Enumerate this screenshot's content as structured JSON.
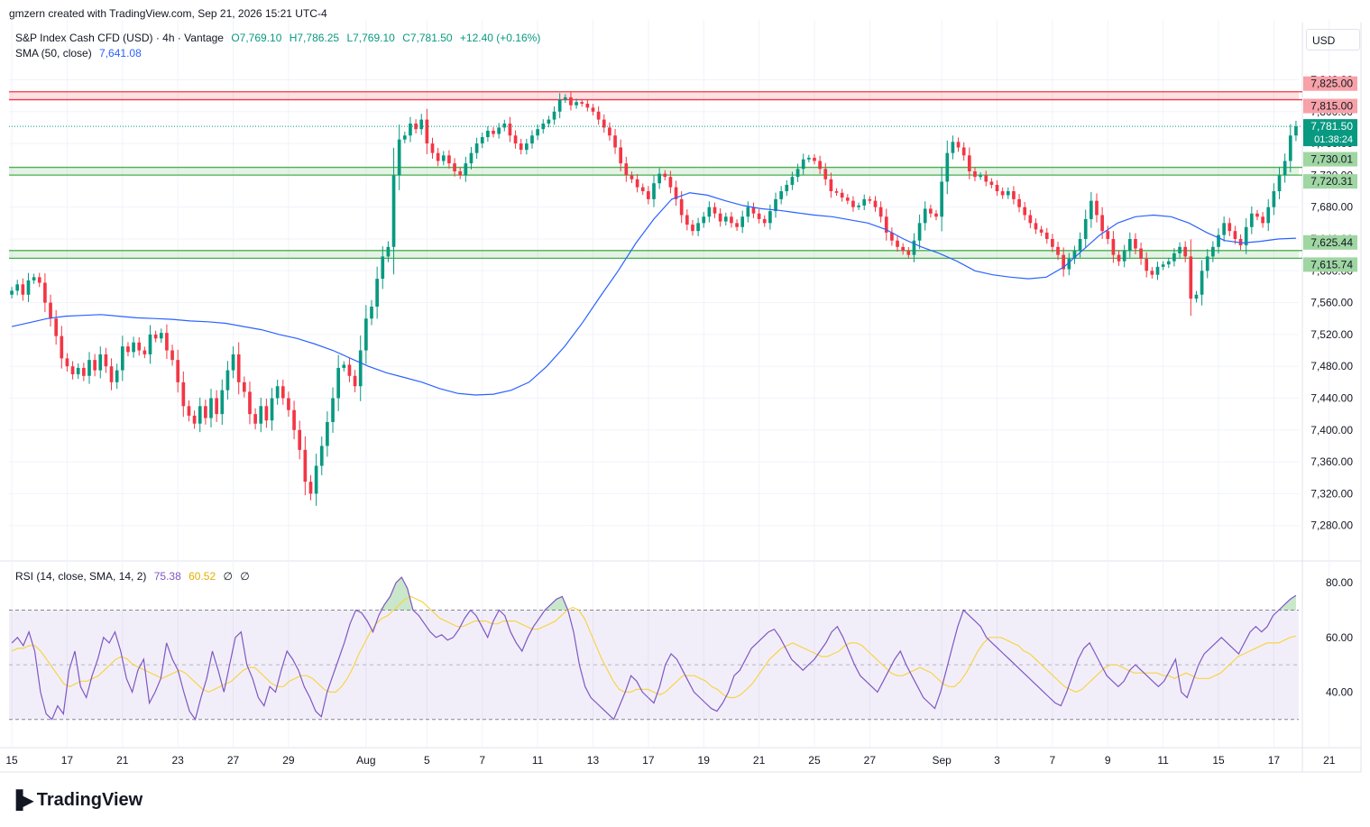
{
  "header": {
    "credit": "gmzern created with TradingView.com, Sep 21, 2026 15:21 UTC-4"
  },
  "legend": {
    "symbol": "S&P Index Cash CFD (USD) · 4h · Vantage",
    "open": "O7,769.10",
    "high": "H7,786.25",
    "low": "L7,769.10",
    "close": "C7,781.50",
    "change": "+12.40 (+0.16%)",
    "sma_label": "SMA (50, close)",
    "sma_value": "7,641.08",
    "rsi_label": "RSI (14, close, SMA, 14, 2)",
    "rsi_value": "75.38",
    "rsi_ma_value": "60.52",
    "rsi_extra1": "∅",
    "rsi_extra2": "∅"
  },
  "currency": "USD",
  "logo_text": "TradingView",
  "colors": {
    "up": "#089981",
    "down": "#f23645",
    "sma": "#2962ff",
    "rsi": "#7e57c2",
    "rsi_ma": "#f7d44a",
    "resistance_zone": "#f23645",
    "support_zone": "#4caf50"
  },
  "chart_data": {
    "type": "candlestick",
    "timeframe": "4h",
    "y_axis": {
      "ticks": [
        "7,840.00",
        "7,800.00",
        "7,760.00",
        "7,720.00",
        "7,680.00",
        "7,640.00",
        "7,600.00",
        "7,560.00",
        "7,520.00",
        "7,480.00",
        "7,440.00",
        "7,400.00",
        "7,360.00",
        "7,320.00",
        "7,280.00"
      ],
      "tick_values": [
        7840,
        7800,
        7760,
        7720,
        7680,
        7640,
        7600,
        7560,
        7520,
        7480,
        7440,
        7400,
        7360,
        7320,
        7280
      ],
      "range": [
        7240,
        7870
      ]
    },
    "x_axis": {
      "labels": [
        "15",
        "17",
        "21",
        "23",
        "27",
        "29",
        "Aug",
        "5",
        "7",
        "11",
        "13",
        "17",
        "19",
        "21",
        "25",
        "27",
        "Sep",
        "3",
        "7",
        "9",
        "11",
        "15",
        "17",
        "21"
      ],
      "label_index": [
        0,
        10,
        20,
        30,
        40,
        50,
        64,
        75,
        85,
        95,
        105,
        115,
        125,
        135,
        145,
        155,
        168,
        178,
        188,
        198,
        208,
        218,
        228,
        238
      ]
    },
    "zones": [
      {
        "kind": "resistance",
        "low": 7815.0,
        "high": 7825.0,
        "labels": [
          "7,825.00",
          "7,815.00"
        ]
      },
      {
        "kind": "support",
        "low": 7720.31,
        "high": 7730.01,
        "labels": [
          "7,730.01",
          "7,720.31"
        ]
      },
      {
        "kind": "support",
        "low": 7615.74,
        "high": 7625.44,
        "labels": [
          "7,625.44",
          "7,615.74"
        ]
      }
    ],
    "last_price": {
      "value": 7781.5,
      "label": "7,781.50",
      "countdown": "01:38:24"
    },
    "closes": [
      7575,
      7583,
      7570,
      7588,
      7592,
      7585,
      7560,
      7540,
      7518,
      7490,
      7480,
      7470,
      7478,
      7468,
      7488,
      7475,
      7495,
      7480,
      7460,
      7475,
      7505,
      7498,
      7510,
      7500,
      7495,
      7520,
      7515,
      7522,
      7500,
      7488,
      7460,
      7430,
      7418,
      7408,
      7430,
      7415,
      7440,
      7420,
      7450,
      7475,
      7495,
      7460,
      7448,
      7420,
      7408,
      7430,
      7412,
      7440,
      7455,
      7440,
      7425,
      7400,
      7375,
      7335,
      7320,
      7355,
      7380,
      7410,
      7440,
      7478,
      7482,
      7468,
      7455,
      7500,
      7540,
      7555,
      7590,
      7618,
      7630,
      7720,
      7765,
      7770,
      7785,
      7778,
      7790,
      7760,
      7748,
      7738,
      7745,
      7735,
      7725,
      7720,
      7735,
      7748,
      7760,
      7768,
      7776,
      7772,
      7780,
      7785,
      7770,
      7760,
      7752,
      7760,
      7770,
      7778,
      7785,
      7790,
      7800,
      7815,
      7818,
      7808,
      7812,
      7810,
      7805,
      7800,
      7790,
      7780,
      7770,
      7755,
      7735,
      7720,
      7715,
      7705,
      7700,
      7690,
      7710,
      7722,
      7718,
      7705,
      7690,
      7670,
      7658,
      7650,
      7660,
      7668,
      7680,
      7672,
      7662,
      7668,
      7660,
      7655,
      7668,
      7680,
      7672,
      7665,
      7660,
      7675,
      7690,
      7700,
      7708,
      7718,
      7728,
      7740,
      7742,
      7738,
      7728,
      7715,
      7700,
      7698,
      7692,
      7688,
      7680,
      7682,
      7690,
      7688,
      7680,
      7668,
      7648,
      7638,
      7630,
      7625,
      7620,
      7638,
      7660,
      7678,
      7672,
      7668,
      7712,
      7748,
      7762,
      7755,
      7745,
      7725,
      7718,
      7720,
      7712,
      7708,
      7700,
      7695,
      7700,
      7690,
      7680,
      7670,
      7660,
      7652,
      7648,
      7640,
      7630,
      7620,
      7602,
      7615,
      7625,
      7640,
      7665,
      7688,
      7670,
      7650,
      7640,
      7620,
      7612,
      7625,
      7640,
      7628,
      7615,
      7600,
      7595,
      7605,
      7608,
      7612,
      7622,
      7630,
      7618,
      7565,
      7570,
      7600,
      7618,
      7630,
      7645,
      7660,
      7650,
      7640,
      7632,
      7655,
      7672,
      7668,
      7660,
      7680,
      7700,
      7720,
      7738,
      7770,
      7781.5
    ],
    "sma50": [
      7530,
      7535,
      7540,
      7543,
      7544,
      7545,
      7543,
      7541,
      7540,
      7539,
      7537,
      7536,
      7534,
      7530,
      7526,
      7520,
      7515,
      7508,
      7500,
      7490,
      7480,
      7472,
      7466,
      7460,
      7452,
      7446,
      7444,
      7445,
      7450,
      7460,
      7480,
      7505,
      7535,
      7568,
      7600,
      7635,
      7665,
      7690,
      7698,
      7695,
      7688,
      7682,
      7678,
      7676,
      7673,
      7670,
      7668,
      7664,
      7660,
      7652,
      7640,
      7630,
      7622,
      7612,
      7600,
      7595,
      7592,
      7590,
      7592,
      7605,
      7625,
      7645,
      7660,
      7668,
      7670,
      7668,
      7660,
      7648,
      7638,
      7635,
      7637,
      7640,
      7641
    ],
    "rsi": {
      "levels": [
        70,
        50,
        30
      ],
      "ticks": [
        "80.00",
        "60.00",
        "40.00"
      ],
      "tick_values": [
        80,
        60,
        40
      ],
      "range": [
        20,
        87
      ],
      "values": [
        58,
        60,
        57,
        62,
        55,
        40,
        32,
        30,
        35,
        32,
        48,
        55,
        42,
        38,
        46,
        52,
        60,
        58,
        62,
        55,
        45,
        40,
        48,
        52,
        36,
        40,
        45,
        58,
        52,
        48,
        40,
        33,
        30,
        38,
        45,
        55,
        48,
        40,
        50,
        60,
        62,
        50,
        45,
        38,
        35,
        42,
        40,
        48,
        55,
        52,
        48,
        42,
        38,
        33,
        31,
        40,
        46,
        52,
        58,
        65,
        70,
        69,
        66,
        62,
        68,
        72,
        75,
        80,
        82,
        78,
        70,
        68,
        65,
        62,
        60,
        61,
        59,
        60,
        63,
        67,
        70,
        68,
        64,
        60,
        66,
        70,
        68,
        62,
        58,
        55,
        60,
        64,
        67,
        70,
        72,
        74,
        75,
        70,
        62,
        50,
        42,
        38,
        36,
        34,
        32,
        30,
        35,
        40,
        46,
        44,
        40,
        38,
        36,
        42,
        50,
        54,
        52,
        48,
        44,
        40,
        38,
        36,
        34,
        33,
        36,
        40,
        46,
        48,
        52,
        56,
        58,
        60,
        62,
        63,
        60,
        56,
        52,
        50,
        48,
        50,
        52,
        55,
        58,
        62,
        64,
        60,
        55,
        50,
        46,
        44,
        42,
        40,
        44,
        48,
        52,
        55,
        50,
        46,
        42,
        38,
        36,
        34,
        40,
        48,
        56,
        64,
        70,
        68,
        66,
        64,
        60,
        58,
        56,
        54,
        52,
        50,
        48,
        46,
        44,
        42,
        40,
        38,
        36,
        35,
        40,
        46,
        52,
        56,
        58,
        54,
        50,
        46,
        44,
        42,
        44,
        48,
        50,
        48,
        46,
        44,
        42,
        44,
        48,
        52,
        40,
        38,
        44,
        50,
        54,
        56,
        58,
        60,
        58,
        56,
        54,
        58,
        62,
        64,
        62,
        64,
        68,
        70,
        72,
        74,
        75.38
      ],
      "ma": [
        55,
        56,
        56,
        57,
        57,
        55,
        52,
        49,
        46,
        43,
        42,
        43,
        44,
        44,
        45,
        46,
        48,
        50,
        52,
        53,
        52,
        50,
        49,
        48,
        47,
        46,
        45,
        46,
        47,
        48,
        47,
        45,
        43,
        41,
        40,
        41,
        42,
        43,
        44,
        46,
        48,
        49,
        49,
        47,
        45,
        43,
        42,
        42,
        44,
        45,
        46,
        46,
        45,
        43,
        41,
        40,
        40,
        42,
        45,
        49,
        54,
        58,
        62,
        65,
        67,
        68,
        70,
        72,
        74,
        75,
        74,
        73,
        71,
        69,
        67,
        66,
        65,
        64,
        64,
        65,
        66,
        66,
        66,
        65,
        65,
        66,
        66,
        66,
        65,
        64,
        63,
        63,
        64,
        65,
        66,
        68,
        70,
        71,
        70,
        67,
        62,
        57,
        52,
        48,
        44,
        41,
        40,
        40,
        41,
        41,
        41,
        40,
        39,
        40,
        42,
        44,
        46,
        46,
        46,
        45,
        44,
        42,
        41,
        39,
        38,
        38,
        39,
        41,
        43,
        46,
        49,
        52,
        54,
        56,
        57,
        58,
        57,
        56,
        55,
        54,
        53,
        53,
        54,
        55,
        57,
        58,
        58,
        57,
        55,
        53,
        51,
        49,
        47,
        46,
        46,
        47,
        48,
        49,
        48,
        47,
        45,
        43,
        42,
        42,
        44,
        47,
        51,
        55,
        58,
        60,
        60,
        60,
        59,
        58,
        57,
        55,
        54,
        52,
        50,
        48,
        46,
        44,
        42,
        41,
        40,
        41,
        43,
        45,
        47,
        49,
        50,
        50,
        49,
        48,
        47,
        47,
        47,
        47,
        47,
        46,
        46,
        45,
        46,
        47,
        46,
        45,
        45,
        45,
        46,
        47,
        49,
        51,
        53,
        54,
        55,
        56,
        57,
        58,
        58,
        58,
        59,
        60,
        60.52
      ]
    }
  }
}
